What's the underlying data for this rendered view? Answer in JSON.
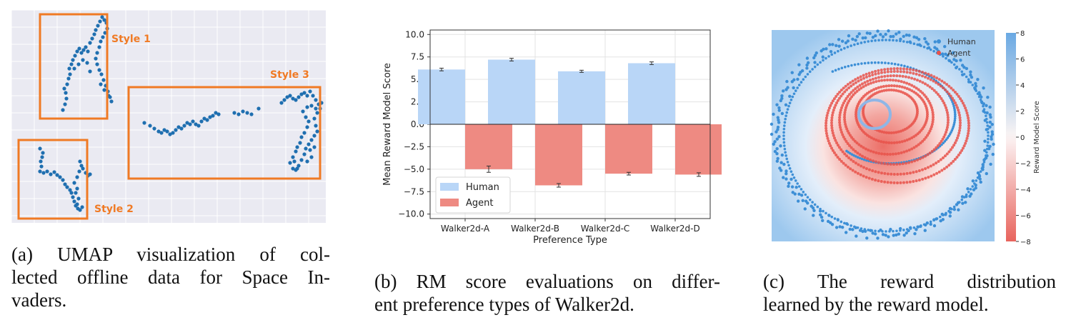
{
  "panels": {
    "a": {
      "caption_lines": [
        "(a) UMAP visualization of col-",
        "lected offline data for Space In-",
        "vaders."
      ],
      "box_color": "#f07a24",
      "point_color": "#1f6fb0",
      "styles": [
        "Style 1",
        "Style 2",
        "Style 3"
      ]
    },
    "b": {
      "caption_lines": [
        "(b) RM score evaluations on differ-",
        "ent preference types of Walker2d."
      ]
    },
    "c": {
      "caption_lines": [
        "(c) The reward distribution",
        "learned by the reward model."
      ]
    }
  },
  "chart_data": [
    {
      "type": "scatter",
      "panel": "a",
      "title": "",
      "clusters": [
        {
          "name": "Style 1",
          "points": [
            [
              72,
              154
            ],
            [
              75,
              146
            ],
            [
              77,
              138
            ],
            [
              76,
              130
            ],
            [
              74,
              124
            ],
            [
              78,
              118
            ],
            [
              80,
              110
            ],
            [
              82,
              104
            ],
            [
              81,
              96
            ],
            [
              84,
              90
            ],
            [
              86,
              84
            ],
            [
              89,
              78
            ],
            [
              92,
              72
            ],
            [
              95,
              68
            ],
            [
              98,
              74
            ],
            [
              101,
              70
            ],
            [
              104,
              66
            ],
            [
              107,
              72
            ],
            [
              110,
              60
            ],
            [
              113,
              54
            ],
            [
              116,
              48
            ],
            [
              118,
              42
            ],
            [
              121,
              36
            ],
            [
              124,
              30
            ],
            [
              127,
              24
            ],
            [
              130,
              28
            ],
            [
              133,
              32
            ],
            [
              134,
              40
            ],
            [
              131,
              46
            ],
            [
              128,
              52
            ],
            [
              125,
              58
            ],
            [
              123,
              66
            ],
            [
              120,
              74
            ],
            [
              118,
              82
            ],
            [
              120,
              90
            ],
            [
              123,
              98
            ],
            [
              126,
              104
            ],
            [
              129,
              112
            ],
            [
              132,
              120
            ],
            [
              135,
              128
            ],
            [
              138,
              136
            ],
            [
              140,
              142
            ],
            [
              136,
              134
            ],
            [
              130,
              126
            ],
            [
              125,
              118
            ],
            [
              88,
              96
            ],
            [
              94,
              90
            ],
            [
              100,
              84
            ],
            [
              106,
              88
            ],
            [
              110,
              100
            ]
          ]
        },
        {
          "name": "Style 2",
          "points": [
            [
              40,
              208
            ],
            [
              44,
              214
            ],
            [
              43,
              220
            ],
            [
              41,
              226
            ],
            [
              42,
              233
            ],
            [
              40,
              240
            ],
            [
              45,
              242
            ],
            [
              50,
              240
            ],
            [
              55,
              244
            ],
            [
              60,
              241
            ],
            [
              64,
              245
            ],
            [
              68,
              248
            ],
            [
              72,
              252
            ],
            [
              75,
              258
            ],
            [
              78,
              262
            ],
            [
              82,
              266
            ],
            [
              84,
              270
            ],
            [
              86,
              276
            ],
            [
              88,
              282
            ],
            [
              90,
              288
            ],
            [
              93,
              292
            ],
            [
              96,
              294
            ],
            [
              99,
              290
            ],
            [
              92,
              286
            ],
            [
              94,
              278
            ],
            [
              90,
              270
            ],
            [
              92,
              264
            ],
            [
              88,
              256
            ],
            [
              92,
              248
            ],
            [
              95,
              240
            ],
            [
              98,
              232
            ],
            [
              96,
              226
            ],
            [
              100,
              236
            ],
            [
              104,
              242
            ],
            [
              107,
              246
            ],
            [
              110,
              244
            ]
          ]
        },
        {
          "name": "Style 3",
          "points": [
            [
              186,
              172
            ],
            [
              194,
              176
            ],
            [
              200,
              180
            ],
            [
              206,
              184
            ],
            [
              210,
              186
            ],
            [
              214,
              182
            ],
            [
              218,
              184
            ],
            [
              222,
              188
            ],
            [
              226,
              186
            ],
            [
              230,
              182
            ],
            [
              234,
              178
            ],
            [
              238,
              180
            ],
            [
              242,
              176
            ],
            [
              246,
              172
            ],
            [
              250,
              174
            ],
            [
              254,
              170
            ],
            [
              258,
              174
            ],
            [
              262,
              176
            ],
            [
              266,
              170
            ],
            [
              270,
              166
            ],
            [
              274,
              168
            ],
            [
              278,
              164
            ],
            [
              282,
              162
            ],
            [
              286,
              158
            ],
            [
              290,
              160
            ],
            [
              312,
              158
            ],
            [
              318,
              160
            ],
            [
              324,
              156
            ],
            [
              330,
              158
            ],
            [
              336,
              160
            ],
            [
              346,
              152
            ],
            [
              378,
              144
            ],
            [
              382,
              140
            ],
            [
              386,
              136
            ],
            [
              390,
              134
            ],
            [
              394,
              138
            ],
            [
              398,
              140
            ],
            [
              402,
              136
            ],
            [
              406,
              132
            ],
            [
              410,
              130
            ],
            [
              414,
              134
            ],
            [
              418,
              128
            ],
            [
              422,
              134
            ],
            [
              426,
              140
            ],
            [
              430,
              146
            ],
            [
              432,
              152
            ],
            [
              434,
              144
            ],
            [
              428,
              158
            ],
            [
              424,
              166
            ],
            [
              426,
              176
            ],
            [
              428,
              184
            ],
            [
              424,
              190
            ],
            [
              420,
              196
            ],
            [
              416,
              202
            ],
            [
              412,
              208
            ],
            [
              410,
              216
            ],
            [
              406,
              224
            ],
            [
              402,
              232
            ],
            [
              398,
              238
            ],
            [
              394,
              236
            ],
            [
              390,
              228
            ],
            [
              394,
              220
            ],
            [
              398,
              212
            ],
            [
              400,
              206
            ],
            [
              404,
              200
            ],
            [
              406,
              192
            ],
            [
              410,
              186
            ],
            [
              414,
              178
            ],
            [
              416,
              170
            ],
            [
              412,
              164
            ],
            [
              408,
              156
            ],
            [
              414,
              150
            ],
            [
              420,
              148
            ],
            [
              426,
              152
            ],
            [
              418,
              210
            ],
            [
              414,
              226
            ],
            [
              420,
              220
            ],
            [
              424,
              206
            ],
            [
              396,
              226
            ],
            [
              400,
              236
            ]
          ]
        }
      ]
    },
    {
      "type": "bar",
      "panel": "b",
      "title": "",
      "xlabel": "Preference Type",
      "ylabel": "Mean Reward Model Score",
      "categories": [
        "Walker2d-A",
        "Walker2d-B",
        "Walker2d-C",
        "Walker2d-D"
      ],
      "ylim": [
        -10.5,
        10.5
      ],
      "yticks": [
        "10.0",
        "7.5",
        "5.0",
        "2.5",
        "0.0",
        "−2.5",
        "−5.0",
        "−7.5",
        "−10.0"
      ],
      "grid": true,
      "legend_position": "lower-left",
      "series": [
        {
          "name": "Human",
          "color": "#b9d6f7",
          "values": [
            6.1,
            7.2,
            5.9,
            6.8
          ],
          "errors": [
            0.15,
            0.15,
            0.12,
            0.15
          ]
        },
        {
          "name": "Agent",
          "color": "#ee8a82",
          "values": [
            -5.0,
            -6.8,
            -5.5,
            -5.6
          ],
          "errors": [
            0.35,
            0.2,
            0.15,
            0.2
          ]
        }
      ]
    },
    {
      "type": "scatter",
      "panel": "c",
      "title": "",
      "colorbar_label": "Reward Model Score",
      "colorbar_ticks": [
        "8",
        "6",
        "4",
        "2",
        "0",
        "−2",
        "−4",
        "−6",
        "−8"
      ],
      "colorbar_range": [
        -8,
        8
      ],
      "legend_position": "top-right",
      "series": [
        {
          "name": "Human",
          "color": "#3d8fd6"
        },
        {
          "name": "Agent",
          "color": "#e8524a"
        }
      ]
    }
  ]
}
